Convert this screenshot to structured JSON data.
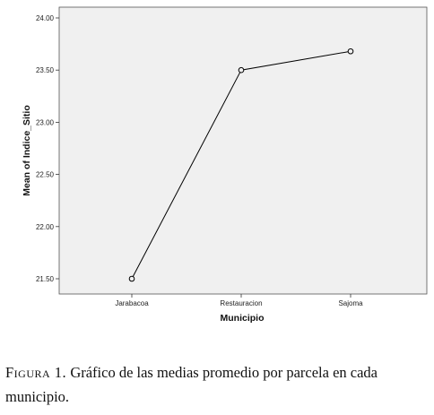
{
  "chart_data": {
    "type": "line",
    "categories": [
      "Jarabacoa",
      "Restauracion",
      "Sajoma"
    ],
    "values": [
      21.5,
      23.5,
      23.68
    ],
    "xlabel": "Municipio",
    "ylabel": "Mean of Indice_Sitio",
    "ylim": [
      21.5,
      24.0
    ],
    "yticks": [
      "21.50",
      "22.00",
      "22.50",
      "23.00",
      "23.50",
      "24.00"
    ],
    "grid": false,
    "marker": "circle",
    "colors": {
      "plot_background": "#f0f0f0",
      "line": "#000000"
    }
  },
  "caption": {
    "label": "Figura 1.",
    "text": "Gráfico de las medias promedio por parcela en cada municipio."
  }
}
